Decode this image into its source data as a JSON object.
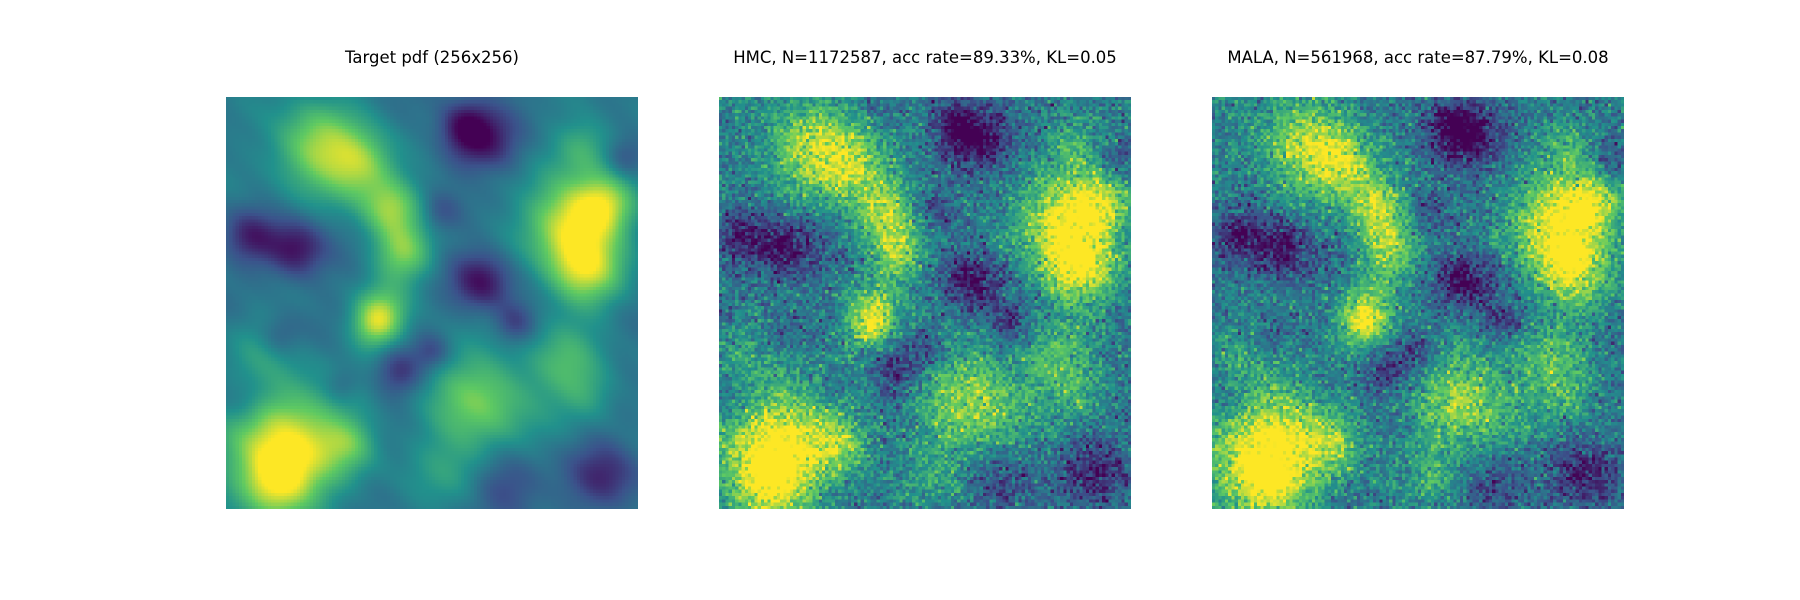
{
  "chart_data": [
    {
      "type": "heatmap",
      "title": "Target pdf (256x256)",
      "grid": "off",
      "axes": "off",
      "colormap": "viridis",
      "noise": "none",
      "grid_size": [
        256,
        256
      ]
    },
    {
      "type": "heatmap",
      "title": "HMC, N=1172587, acc rate=89.33%, KL=0.05",
      "grid": "off",
      "axes": "off",
      "colormap": "viridis",
      "noise": "sampling",
      "sampler": "HMC",
      "N": 1172587,
      "acc_rate_percent": 89.33,
      "KL": 0.05
    },
    {
      "type": "heatmap",
      "title": "MALA, N=561968, acc rate=87.79%, KL=0.08",
      "grid": "off",
      "axes": "off",
      "colormap": "viridis",
      "noise": "sampling",
      "sampler": "MALA",
      "N": 561968,
      "acc_rate_percent": 87.79,
      "KL": 0.08
    }
  ],
  "colors": {
    "viridis_stops": [
      "#440154",
      "#3b528b",
      "#21918c",
      "#5ec962",
      "#fde725"
    ]
  }
}
